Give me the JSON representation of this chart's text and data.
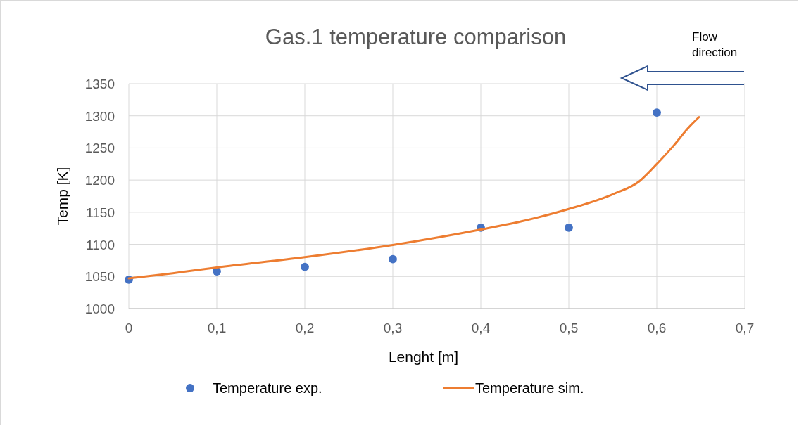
{
  "chart_data": {
    "type": "scatter",
    "title": "Gas.1 temperature comparison",
    "xlabel": "Lenght [m]",
    "ylabel": "Temp [K]",
    "annotations": [
      "Flow direction"
    ],
    "xlim": [
      0,
      0.7
    ],
    "xticks": [
      {
        "value": 0,
        "label": "0"
      },
      {
        "value": 0.1,
        "label": "0,1"
      },
      {
        "value": 0.2,
        "label": "0,2"
      },
      {
        "value": 0.3,
        "label": "0,3"
      },
      {
        "value": 0.4,
        "label": "0,4"
      },
      {
        "value": 0.5,
        "label": "0,5"
      },
      {
        "value": 0.6,
        "label": "0,6"
      },
      {
        "value": 0.7,
        "label": "0,7"
      }
    ],
    "ylim": [
      1000,
      1350
    ],
    "yticks": [
      1000,
      1050,
      1100,
      1150,
      1200,
      1250,
      1300,
      1350
    ],
    "grid": true,
    "legend": "bottom",
    "series": [
      {
        "name": "Temperature exp.",
        "color": "#4472c4",
        "marker": "circle",
        "x": [
          0,
          0.1,
          0.2,
          0.3,
          0.4,
          0.5,
          0.6
        ],
        "values": [
          1045,
          1058,
          1065,
          1077,
          1126,
          1126,
          1305
        ]
      },
      {
        "name": "Temperature sim.",
        "type": "line",
        "color": "#ed7d31",
        "marker": "none",
        "x": [
          0,
          0.05,
          0.1,
          0.2,
          0.3,
          0.4,
          0.45,
          0.5,
          0.55,
          0.58,
          0.6,
          0.62,
          0.635,
          0.648
        ],
        "values": [
          1047,
          1055,
          1064,
          1080,
          1099,
          1123,
          1137,
          1155,
          1178,
          1198,
          1225,
          1255,
          1280,
          1298
        ]
      }
    ]
  }
}
